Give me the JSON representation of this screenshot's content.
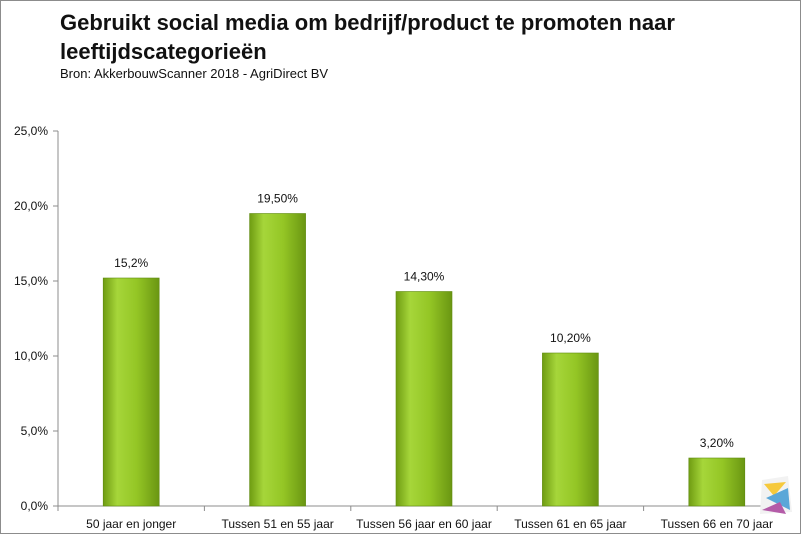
{
  "chart_data": {
    "type": "bar",
    "title": "Gebruikt social media om bedrijf/product te promoten naar leeftijdscategorieën",
    "subtitle": "Bron: AkkerbouwScanner 2018 - AgriDirect BV",
    "categories": [
      "50 jaar en jonger",
      "Tussen 51 en 55 jaar",
      "Tussen 56 jaar en 60 jaar",
      "Tussen 61 en 65 jaar",
      "Tussen 66 en 70 jaar"
    ],
    "values": [
      15.2,
      19.5,
      14.3,
      10.2,
      3.2
    ],
    "data_labels": [
      "15,2%",
      "19,50%",
      "14,30%",
      "10,20%",
      "3,20%"
    ],
    "y_ticks": [
      "0,0%",
      "5,0%",
      "10,0%",
      "15,0%",
      "20,0%",
      "25,0%"
    ],
    "ylim": [
      0,
      25
    ],
    "xlabel": "",
    "ylabel": "",
    "grid": false,
    "bar_color": "#8fc31f"
  }
}
